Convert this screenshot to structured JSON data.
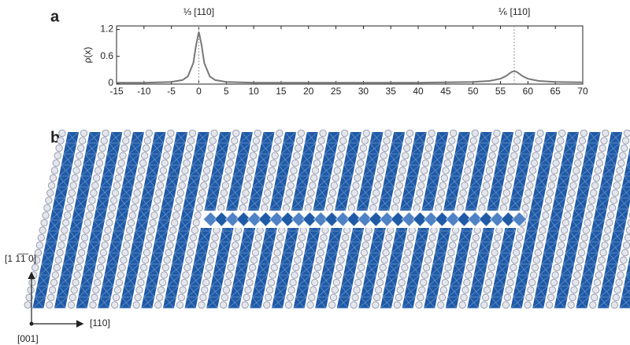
{
  "chart_data": {
    "type": "line",
    "panel_label": "a",
    "ylabel": "ρ(x)",
    "x": [
      -15,
      -10,
      -5,
      -3,
      -2,
      -1,
      -0.5,
      0,
      0.5,
      1,
      2,
      3,
      5,
      10,
      20,
      30,
      40,
      45,
      50,
      53,
      55,
      56,
      57,
      57.5,
      58,
      59,
      60,
      62,
      65,
      70
    ],
    "values": [
      0.01,
      0.01,
      0.03,
      0.07,
      0.15,
      0.45,
      0.85,
      1.15,
      0.85,
      0.45,
      0.15,
      0.07,
      0.03,
      0.01,
      0.01,
      0.01,
      0.01,
      0.02,
      0.03,
      0.05,
      0.1,
      0.16,
      0.25,
      0.27,
      0.25,
      0.16,
      0.1,
      0.05,
      0.03,
      0.02
    ],
    "color": "#777777",
    "xlim": [
      -15,
      70
    ],
    "ylim": [
      -0.02,
      1.28
    ],
    "xticks": [
      -15,
      -10,
      -5,
      0,
      5,
      10,
      15,
      20,
      25,
      30,
      35,
      40,
      45,
      50,
      55,
      60,
      65,
      70
    ],
    "yticks": [
      0,
      0.6,
      1.2
    ],
    "annotations": [
      {
        "text": "⅓ [110]",
        "x": 0
      },
      {
        "text": "⅙ [110]",
        "x": 57.5
      }
    ]
  },
  "diagram": {
    "panel_label": "b",
    "axis_labels": {
      "vertical": "[1 1̅1̅ 0]",
      "horizontal": "[110]",
      "origin": "[001]"
    }
  }
}
